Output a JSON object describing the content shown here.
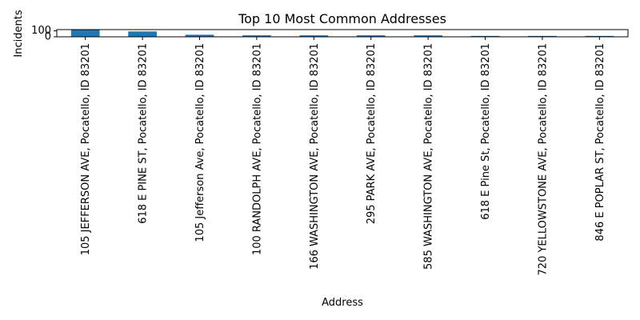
{
  "chart_data": {
    "type": "bar",
    "title": "Top 10 Most Common Addresses",
    "xlabel": "Address",
    "ylabel": "Incidents",
    "categories": [
      "105 JEFFERSON AVE, Pocatello, ID 83201",
      "618 E PINE ST, Pocatello, ID 83201",
      "105 Jefferson Ave, Pocatello, ID 83201",
      "100 RANDOLPH AVE, Pocatello, ID 83201",
      "166 WASHINGTON AVE, Pocatello, ID 83201",
      "295 PARK AVE, Pocatello, ID 83201",
      "585 WASHINGTON AVE, Pocatello, ID 83201",
      "618 E Pine St, Pocatello, ID 83201",
      "720 YELLOWSTONE AVE, Pocatello, ID 83201",
      "846 E POPLAR ST, Pocatello, ID 83201"
    ],
    "values": [
      115,
      90,
      35,
      25,
      25,
      25,
      25,
      15,
      15,
      15
    ],
    "yticks": [
      "0",
      "100"
    ],
    "ytick_values": [
      0,
      100
    ],
    "ylim": [
      0,
      121
    ],
    "bar_color": "#1f77b4",
    "grid": false,
    "legend": "none"
  }
}
